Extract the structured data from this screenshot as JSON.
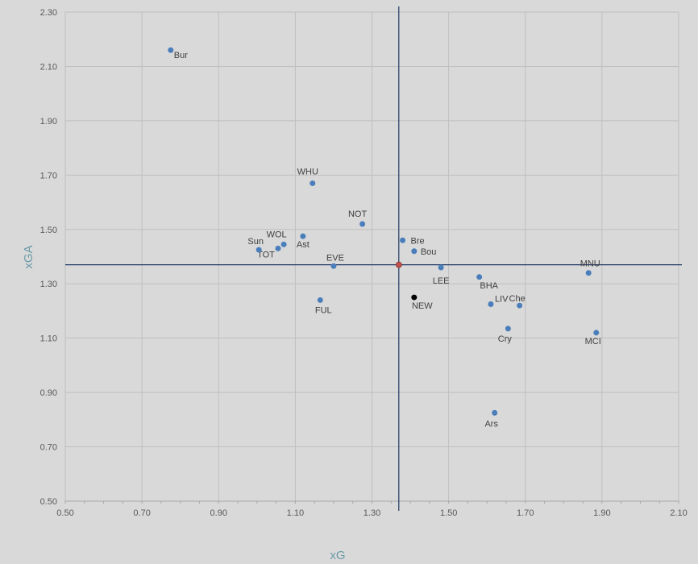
{
  "chart_data": {
    "type": "scatter",
    "title": "",
    "xlabel": "xG",
    "ylabel": "xGA",
    "xlim": [
      0.5,
      2.1
    ],
    "ylim": [
      0.5,
      2.3
    ],
    "x_ticks": [
      "0.50",
      "0.70",
      "0.90",
      "1.10",
      "1.30",
      "1.50",
      "1.70",
      "1.90",
      "2.10"
    ],
    "y_ticks": [
      "0.50",
      "0.70",
      "0.90",
      "1.10",
      "1.30",
      "1.50",
      "1.70",
      "1.90",
      "2.10",
      "2.30"
    ],
    "grid": true,
    "reference_lines": {
      "x": 1.37,
      "y": 1.37
    },
    "colors": {
      "point": "#4a7ebb",
      "highlight": "#000000",
      "average": "#c0504d",
      "reference_line": "#1f3864",
      "grid": "#bfbfbf"
    },
    "points": [
      {
        "label": "Bur",
        "x": 0.775,
        "y": 2.16
      },
      {
        "label": "WHU",
        "x": 1.145,
        "y": 1.67
      },
      {
        "label": "NOT",
        "x": 1.275,
        "y": 1.52
      },
      {
        "label": "Ast",
        "x": 1.12,
        "y": 1.475
      },
      {
        "label": "WOL",
        "x": 1.07,
        "y": 1.445
      },
      {
        "label": "TOT",
        "x": 1.055,
        "y": 1.43
      },
      {
        "label": "Sun",
        "x": 1.005,
        "y": 1.425
      },
      {
        "label": "EVE",
        "x": 1.2,
        "y": 1.365
      },
      {
        "label": "FUL",
        "x": 1.165,
        "y": 1.24
      },
      {
        "label": "Bre",
        "x": 1.38,
        "y": 1.46
      },
      {
        "label": "Bou",
        "x": 1.41,
        "y": 1.42
      },
      {
        "label": "LEE",
        "x": 1.48,
        "y": 1.36
      },
      {
        "label": "NEW",
        "x": 1.41,
        "y": 1.25,
        "highlight": true
      },
      {
        "label": "BHA",
        "x": 1.58,
        "y": 1.325
      },
      {
        "label": "LIV",
        "x": 1.61,
        "y": 1.225
      },
      {
        "label": "Che",
        "x": 1.685,
        "y": 1.22
      },
      {
        "label": "Cry",
        "x": 1.655,
        "y": 1.135
      },
      {
        "label": "Ars",
        "x": 1.62,
        "y": 0.825
      },
      {
        "label": "MNU",
        "x": 1.865,
        "y": 1.34
      },
      {
        "label": "MCI",
        "x": 1.885,
        "y": 1.12
      }
    ],
    "average_point": {
      "x": 1.37,
      "y": 1.37
    }
  }
}
